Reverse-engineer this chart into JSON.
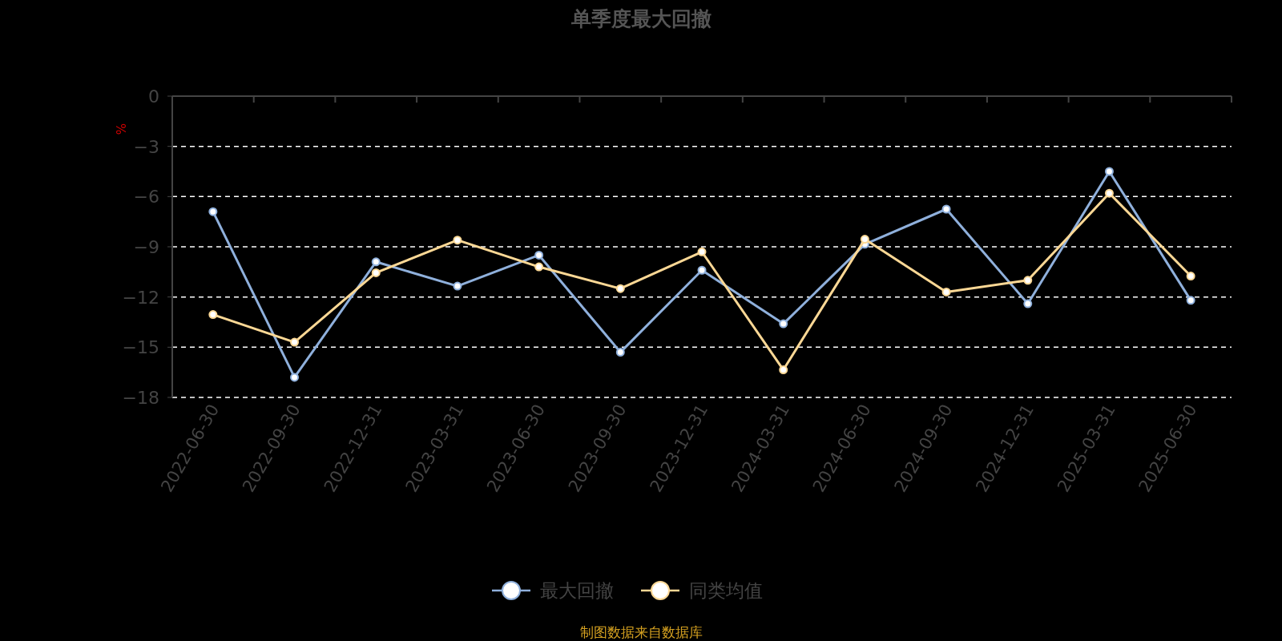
{
  "chart_data": {
    "type": "line",
    "title": "单季度最大回撤",
    "ylabel": "%",
    "categories": [
      "2022-06-30",
      "2022-09-30",
      "2022-12-31",
      "2023-03-31",
      "2023-06-30",
      "2023-09-30",
      "2023-12-31",
      "2024-03-31",
      "2024-06-30",
      "2024-09-30",
      "2024-12-31",
      "2025-03-31",
      "2025-06-30"
    ],
    "series": [
      {
        "name": "最大回撤",
        "color": "#8fb0dc",
        "values": [
          -6.9,
          -16.8,
          -9.9,
          -11.35,
          -9.5,
          -15.3,
          -10.4,
          -13.6,
          -8.85,
          -6.75,
          -12.4,
          -4.5,
          -12.2
        ]
      },
      {
        "name": "同类均值",
        "color": "#fcd895",
        "values": [
          -13.05,
          -14.7,
          -10.55,
          -8.6,
          -10.2,
          -11.5,
          -9.3,
          -16.35,
          -8.55,
          -11.7,
          -11.0,
          -5.8,
          -10.75
        ]
      }
    ],
    "ylim": [
      -18,
      0
    ],
    "yticks": [
      0,
      -3,
      -6,
      -9,
      -12,
      -15,
      -18
    ],
    "grid": "y",
    "legend": "bottom",
    "marker": "circle",
    "line_style": "solid",
    "annotations": [
      "制图数据来自数据库"
    ]
  }
}
